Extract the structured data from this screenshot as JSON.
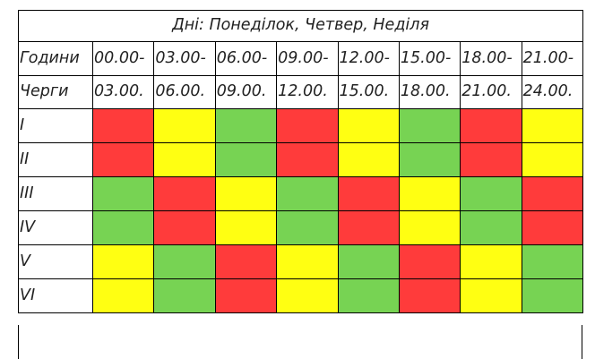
{
  "title": "Дні: Понеділок, Четвер, Неділя",
  "header": {
    "hours_label": "Години",
    "queues_label": "Черги",
    "slot_starts": [
      "00.00-",
      "03.00-",
      "06.00-",
      "09.00-",
      "12.00-",
      "15.00-",
      "18.00-",
      "21.00-"
    ],
    "slot_ends": [
      "03.00.",
      "06.00.",
      "09.00.",
      "12.00.",
      "15.00.",
      "18.00.",
      "21.00.",
      "24.00."
    ]
  },
  "colors": {
    "red": "#ff3b3b",
    "yellow": "#ffff12",
    "green": "#77d353"
  },
  "queues": [
    {
      "label": "I",
      "cells": [
        "red",
        "yellow",
        "green",
        "red",
        "yellow",
        "green",
        "red",
        "yellow"
      ]
    },
    {
      "label": "II",
      "cells": [
        "red",
        "yellow",
        "green",
        "red",
        "yellow",
        "green",
        "red",
        "yellow"
      ]
    },
    {
      "label": "III",
      "cells": [
        "green",
        "red",
        "yellow",
        "green",
        "red",
        "yellow",
        "green",
        "red"
      ]
    },
    {
      "label": "IV",
      "cells": [
        "green",
        "red",
        "yellow",
        "green",
        "red",
        "yellow",
        "green",
        "red"
      ]
    },
    {
      "label": "V",
      "cells": [
        "yellow",
        "green",
        "red",
        "yellow",
        "green",
        "red",
        "yellow",
        "green"
      ]
    },
    {
      "label": "VI",
      "cells": [
        "yellow",
        "green",
        "red",
        "yellow",
        "green",
        "red",
        "yellow",
        "green"
      ]
    }
  ]
}
